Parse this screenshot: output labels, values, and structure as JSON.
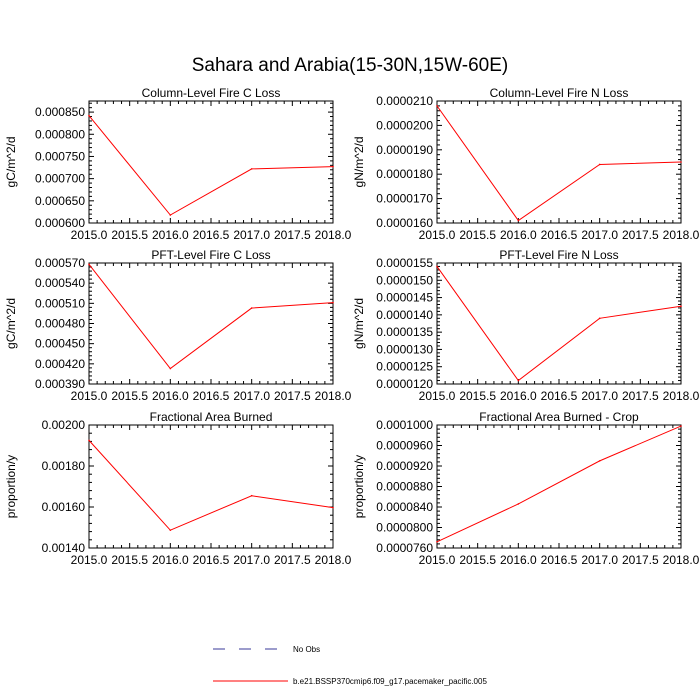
{
  "page_title": "Sahara and Arabia(15-30N,15W-60E)",
  "colors": {
    "series": "#ff0000",
    "obs": "#3a3a9a",
    "axis": "#000000"
  },
  "legend": [
    {
      "label": "No Obs",
      "style": "dashed",
      "color": "#3a3a9a"
    },
    {
      "label": "b.e21.BSSP370cmip6.f09_g17.pacemaker_pacific.005",
      "style": "solid",
      "color": "#ff0000"
    }
  ],
  "chart_data": [
    {
      "type": "line",
      "title": "Column-Level Fire C Loss",
      "ylabel": "gC/m^2/d",
      "xlim": [
        2015,
        2018
      ],
      "ylim": [
        0.0006,
        0.000875
      ],
      "xticks": [
        "2015.0",
        "2015.5",
        "2016.0",
        "2016.5",
        "2017.0",
        "2017.5",
        "2018.0"
      ],
      "yticks": [
        "0.000600",
        "0.000650",
        "0.000700",
        "0.000750",
        "0.000800",
        "0.000850"
      ],
      "x": [
        2015,
        2016,
        2017,
        2018
      ],
      "series": [
        {
          "name": "b.e21.BSSP370cmip6.f09_g17.pacemaker_pacific.005",
          "values": [
            0.000842,
            0.000618,
            0.000722,
            0.000727
          ]
        }
      ]
    },
    {
      "type": "line",
      "title": "Column-Level Fire N Loss",
      "ylabel": "gN/m^2/d",
      "xlim": [
        2015,
        2018
      ],
      "ylim": [
        1.6e-05,
        2.1e-05
      ],
      "xticks": [
        "2015.0",
        "2015.5",
        "2016.0",
        "2016.5",
        "2017.0",
        "2017.5",
        "2018.0"
      ],
      "yticks": [
        "0.0000160",
        "0.0000170",
        "0.0000180",
        "0.0000190",
        "0.0000200",
        "0.0000210"
      ],
      "x": [
        2015,
        2016,
        2017,
        2018
      ],
      "series": [
        {
          "name": "b.e21.BSSP370cmip6.f09_g17.pacemaker_pacific.005",
          "values": [
            2.08e-05,
            1.61e-05,
            1.84e-05,
            1.85e-05
          ]
        }
      ]
    },
    {
      "type": "line",
      "title": "PFT-Level Fire C Loss",
      "ylabel": "gC/m^2/d",
      "xlim": [
        2015,
        2018
      ],
      "ylim": [
        0.00039,
        0.00057
      ],
      "xticks": [
        "2015.0",
        "2015.5",
        "2016.0",
        "2016.5",
        "2017.0",
        "2017.5",
        "2018.0"
      ],
      "yticks": [
        "0.000390",
        "0.000420",
        "0.000450",
        "0.000480",
        "0.000510",
        "0.000540",
        "0.000570"
      ],
      "x": [
        2015,
        2016,
        2017,
        2018
      ],
      "series": [
        {
          "name": "b.e21.BSSP370cmip6.f09_g17.pacemaker_pacific.005",
          "values": [
            0.000568,
            0.000413,
            0.000503,
            0.000511
          ]
        }
      ]
    },
    {
      "type": "line",
      "title": "PFT-Level Fire N Loss",
      "ylabel": "gN/m^2/d",
      "xlim": [
        2015,
        2018
      ],
      "ylim": [
        1.2e-05,
        1.55e-05
      ],
      "xticks": [
        "2015.0",
        "2015.5",
        "2016.0",
        "2016.5",
        "2017.0",
        "2017.5",
        "2018.0"
      ],
      "yticks": [
        "0.0000120",
        "0.0000125",
        "0.0000130",
        "0.0000135",
        "0.0000140",
        "0.0000145",
        "0.0000150",
        "0.0000155"
      ],
      "x": [
        2015,
        2016,
        2017,
        2018
      ],
      "series": [
        {
          "name": "b.e21.BSSP370cmip6.f09_g17.pacemaker_pacific.005",
          "values": [
            1.54e-05,
            1.21e-05,
            1.39e-05,
            1.425e-05
          ]
        }
      ]
    },
    {
      "type": "line",
      "title": "Fractional Area Burned",
      "ylabel": "proportion/y",
      "xlim": [
        2015,
        2018
      ],
      "ylim": [
        0.0014,
        0.002
      ],
      "xticks": [
        "2015.0",
        "2015.5",
        "2016.0",
        "2016.5",
        "2017.0",
        "2017.5",
        "2018.0"
      ],
      "yticks": [
        "0.00140",
        "0.00160",
        "0.00180",
        "0.00200"
      ],
      "x": [
        2015,
        2016,
        2017,
        2018
      ],
      "series": [
        {
          "name": "b.e21.BSSP370cmip6.f09_g17.pacemaker_pacific.005",
          "values": [
            0.001925,
            0.001487,
            0.001655,
            0.001597
          ]
        }
      ]
    },
    {
      "type": "line",
      "title": "Fractional Area Burned - Crop",
      "ylabel": "proportion/y",
      "xlim": [
        2015,
        2018
      ],
      "ylim": [
        7.6e-05,
        0.0001
      ],
      "xticks": [
        "2015.0",
        "2015.5",
        "2016.0",
        "2016.5",
        "2017.0",
        "2017.5",
        "2018.0"
      ],
      "yticks": [
        "0.0000760",
        "0.0000800",
        "0.0000840",
        "0.0000880",
        "0.0000920",
        "0.0000960",
        "0.0001000"
      ],
      "x": [
        2015,
        2016,
        2017,
        2018
      ],
      "series": [
        {
          "name": "b.e21.BSSP370cmip6.f09_g17.pacemaker_pacific.005",
          "values": [
            7.72e-05,
            8.46e-05,
            9.3e-05,
            9.98e-05
          ]
        }
      ]
    }
  ]
}
